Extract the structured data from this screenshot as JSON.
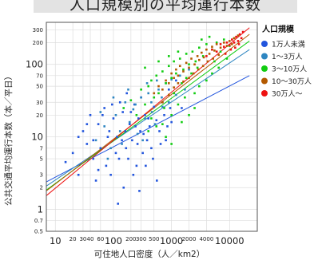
{
  "header": {
    "title": "人口規模別の平均運行本数"
  },
  "chart_data": {
    "type": "scatter",
    "title": "",
    "xlabel": "可住地人口密度（人／km2）",
    "ylabel": "公共交通平均運行本数（本／平日）",
    "x_scale": "log",
    "y_scale": "log",
    "xlim": [
      7,
      30000
    ],
    "ylim": [
      0.5,
      380
    ],
    "x_ticks": [
      {
        "v": 10,
        "label": "10",
        "size": "big"
      },
      {
        "v": 20,
        "label": "20",
        "size": "small"
      },
      {
        "v": 30,
        "label": "30",
        "size": "small"
      },
      {
        "v": 40,
        "label": "40",
        "size": "small"
      },
      {
        "v": 60,
        "label": "60",
        "size": "small"
      },
      {
        "v": 100,
        "label": "100",
        "size": "big"
      },
      {
        "v": 200,
        "label": "200",
        "size": "small"
      },
      {
        "v": 300,
        "label": "300",
        "size": "small"
      },
      {
        "v": 500,
        "label": "500",
        "size": "small"
      },
      {
        "v": 1000,
        "label": "1000",
        "size": "big"
      },
      {
        "v": 2000,
        "label": "2000",
        "size": "small"
      },
      {
        "v": 4000,
        "label": "4000",
        "size": "small"
      },
      {
        "v": 10000,
        "label": "10000",
        "size": "big"
      }
    ],
    "y_ticks": [
      {
        "v": 0.5,
        "label": "0.5",
        "size": "small"
      },
      {
        "v": 0.7,
        "label": "0.7",
        "size": "small"
      },
      {
        "v": 1,
        "label": "1",
        "size": "big"
      },
      {
        "v": 2,
        "label": "2",
        "size": "small"
      },
      {
        "v": 3,
        "label": "3",
        "size": "small"
      },
      {
        "v": 5,
        "label": "5",
        "size": "small"
      },
      {
        "v": 7,
        "label": "7",
        "size": "small"
      },
      {
        "v": 10,
        "label": "10",
        "size": "big"
      },
      {
        "v": 20,
        "label": "20",
        "size": "small"
      },
      {
        "v": 30,
        "label": "30",
        "size": "small"
      },
      {
        "v": 50,
        "label": "50",
        "size": "small"
      },
      {
        "v": 70,
        "label": "70",
        "size": "small"
      },
      {
        "v": 100,
        "label": "100",
        "size": "big"
      },
      {
        "v": 200,
        "label": "200",
        "size": "small"
      },
      {
        "v": 300,
        "label": "300",
        "size": "small"
      }
    ],
    "grid": true,
    "legend": {
      "title": "人口規模",
      "placement": "top-right"
    },
    "series": [
      {
        "name": "1万人未満",
        "color": "#2255dd",
        "points": [
          [
            15,
            4.5
          ],
          [
            20,
            6
          ],
          [
            25,
            3
          ],
          [
            30,
            12
          ],
          [
            35,
            8
          ],
          [
            40,
            20
          ],
          [
            45,
            5
          ],
          [
            50,
            2.5
          ],
          [
            55,
            15
          ],
          [
            60,
            7
          ],
          [
            70,
            25
          ],
          [
            75,
            4
          ],
          [
            80,
            10
          ],
          [
            90,
            3
          ],
          [
            100,
            18
          ],
          [
            110,
            6
          ],
          [
            120,
            1.2
          ],
          [
            130,
            30
          ],
          [
            140,
            9
          ],
          [
            150,
            2
          ],
          [
            160,
            12
          ],
          [
            170,
            40
          ],
          [
            180,
            5
          ],
          [
            200,
            22
          ],
          [
            220,
            3
          ],
          [
            240,
            14
          ],
          [
            260,
            8
          ],
          [
            280,
            1.8
          ],
          [
            300,
            35
          ],
          [
            330,
            11
          ],
          [
            360,
            4
          ],
          [
            400,
            18
          ],
          [
            450,
            7
          ],
          [
            500,
            26
          ],
          [
            560,
            2.5
          ],
          [
            620,
            12
          ],
          [
            700,
            30
          ],
          [
            800,
            9
          ],
          [
            900,
            45
          ],
          [
            1000,
            16
          ],
          [
            1200,
            60
          ],
          [
            1500,
            25
          ],
          [
            25,
            10
          ],
          [
            35,
            15
          ],
          [
            45,
            9
          ],
          [
            55,
            3.5
          ],
          [
            65,
            20
          ],
          [
            85,
            12
          ],
          [
            95,
            28
          ],
          [
            115,
            10
          ],
          [
            125,
            5
          ],
          [
            145,
            22
          ],
          [
            165,
            7
          ],
          [
            190,
            15
          ],
          [
            210,
            9
          ],
          [
            230,
            28
          ],
          [
            250,
            4
          ],
          [
            270,
            18
          ],
          [
            290,
            12
          ],
          [
            320,
            6
          ],
          [
            350,
            20
          ],
          [
            380,
            9
          ],
          [
            420,
            14
          ],
          [
            480,
            5
          ],
          [
            550,
            17
          ],
          [
            650,
            8
          ],
          [
            750,
            20
          ],
          [
            850,
            14
          ],
          [
            950,
            25
          ]
        ]
      },
      {
        "name": "1〜3万人",
        "color": "#2e86c1",
        "points": [
          [
            50,
            9
          ],
          [
            70,
            14
          ],
          [
            90,
            7
          ],
          [
            110,
            20
          ],
          [
            130,
            12
          ],
          [
            160,
            30
          ],
          [
            190,
            16
          ],
          [
            220,
            24
          ],
          [
            260,
            11
          ],
          [
            300,
            35
          ],
          [
            350,
            18
          ],
          [
            400,
            40
          ],
          [
            460,
            22
          ],
          [
            520,
            15
          ],
          [
            600,
            45
          ],
          [
            700,
            26
          ],
          [
            800,
            55
          ],
          [
            900,
            30
          ],
          [
            1000,
            62
          ],
          [
            1200,
            38
          ],
          [
            1400,
            70
          ],
          [
            1700,
            45
          ],
          [
            2000,
            85
          ],
          [
            60,
            22
          ],
          [
            80,
            5
          ],
          [
            100,
            35
          ],
          [
            140,
            8
          ],
          [
            180,
            45
          ],
          [
            240,
            28
          ],
          [
            320,
            9
          ],
          [
            380,
            55
          ],
          [
            450,
            30
          ],
          [
            560,
            60
          ],
          [
            680,
            35
          ]
        ]
      },
      {
        "name": "3〜10万人",
        "color": "#11cc11",
        "points": [
          [
            150,
            25
          ],
          [
            200,
            32
          ],
          [
            250,
            20
          ],
          [
            300,
            45
          ],
          [
            350,
            28
          ],
          [
            400,
            50
          ],
          [
            450,
            60
          ],
          [
            500,
            35
          ],
          [
            550,
            70
          ],
          [
            600,
            40
          ],
          [
            700,
            80
          ],
          [
            800,
            55
          ],
          [
            900,
            95
          ],
          [
            1000,
            65
          ],
          [
            1100,
            110
          ],
          [
            1200,
            75
          ],
          [
            1400,
            120
          ],
          [
            1600,
            85
          ],
          [
            1800,
            140
          ],
          [
            2000,
            100
          ],
          [
            2300,
            150
          ],
          [
            2600,
            110
          ],
          [
            3000,
            170
          ],
          [
            3500,
            130
          ],
          [
            4000,
            190
          ],
          [
            5000,
            160
          ],
          [
            6000,
            200
          ],
          [
            7000,
            150
          ],
          [
            8000,
            220
          ],
          [
            10000,
            180
          ],
          [
            350,
            90
          ],
          [
            450,
            18
          ],
          [
            600,
            110
          ],
          [
            750,
            25
          ],
          [
            900,
            130
          ],
          [
            1100,
            40
          ],
          [
            1300,
            150
          ],
          [
            1500,
            55
          ],
          [
            1800,
            65
          ],
          [
            2200,
            75
          ],
          [
            2800,
            90
          ],
          [
            3300,
            220
          ],
          [
            4500,
            240
          ],
          [
            5500,
            110
          ],
          [
            700,
            15
          ],
          [
            1000,
            20
          ],
          [
            1300,
            28
          ],
          [
            1700,
            35
          ],
          [
            2500,
            40
          ],
          [
            3000,
            50
          ],
          [
            400,
            12
          ],
          [
            550,
            14
          ],
          [
            800,
            10
          ],
          [
            1000,
            8
          ],
          [
            1500,
            16
          ],
          [
            2000,
            20
          ],
          [
            2500,
            25
          ],
          [
            12000,
            230
          ],
          [
            9000,
            120
          ],
          [
            6500,
            90
          ],
          [
            5000,
            75
          ],
          [
            4000,
            60
          ]
        ]
      },
      {
        "name": "10〜30万人",
        "color": "#b35900",
        "points": [
          [
            500,
            40
          ],
          [
            600,
            50
          ],
          [
            700,
            45
          ],
          [
            800,
            60
          ],
          [
            900,
            55
          ],
          [
            1000,
            75
          ],
          [
            1100,
            65
          ],
          [
            1200,
            85
          ],
          [
            1300,
            70
          ],
          [
            1400,
            95
          ],
          [
            1600,
            80
          ],
          [
            1800,
            105
          ],
          [
            2000,
            90
          ],
          [
            2200,
            120
          ],
          [
            2500,
            100
          ],
          [
            2800,
            130
          ],
          [
            3000,
            115
          ],
          [
            3300,
            145
          ],
          [
            3600,
            125
          ],
          [
            4000,
            160
          ],
          [
            4500,
            140
          ],
          [
            5000,
            175
          ],
          [
            5500,
            155
          ],
          [
            6000,
            190
          ],
          [
            7000,
            170
          ],
          [
            8000,
            200
          ],
          [
            9000,
            180
          ],
          [
            10000,
            210
          ],
          [
            11000,
            190
          ],
          [
            12000,
            230
          ],
          [
            14000,
            250
          ],
          [
            700,
            30
          ],
          [
            900,
            38
          ],
          [
            1100,
            48
          ],
          [
            1300,
            55
          ],
          [
            1600,
            58
          ],
          [
            2000,
            65
          ],
          [
            2400,
            75
          ],
          [
            2900,
            85
          ],
          [
            3500,
            95
          ],
          [
            4200,
            110
          ],
          [
            5200,
            120
          ],
          [
            6500,
            135
          ]
        ]
      },
      {
        "name": "30万人〜",
        "color": "#ee1111",
        "points": [
          [
            4000,
            130
          ],
          [
            5000,
            160
          ],
          [
            6000,
            150
          ],
          [
            7000,
            190
          ],
          [
            8000,
            175
          ],
          [
            9000,
            200
          ],
          [
            10000,
            185
          ],
          [
            11000,
            220
          ],
          [
            12000,
            200
          ],
          [
            13000,
            240
          ],
          [
            14000,
            210
          ],
          [
            15000,
            260
          ],
          [
            16000,
            230
          ],
          [
            17000,
            280
          ],
          [
            8500,
            140
          ],
          [
            10500,
            160
          ],
          [
            12500,
            170
          ],
          [
            14500,
            190
          ]
        ]
      }
    ],
    "fit_lines": [
      {
        "series": "1万人未満",
        "color": "#2255dd",
        "from": [
          7,
          2.4
        ],
        "to": [
          22000,
          70
        ]
      },
      {
        "series": "1〜3万人",
        "color": "#2e86c1",
        "from": [
          7,
          2.1
        ],
        "to": [
          22000,
          160
        ]
      },
      {
        "series": "3〜10万人",
        "color": "#11cc11",
        "from": [
          7,
          1.85
        ],
        "to": [
          22000,
          210
        ]
      },
      {
        "series": "10〜30万人",
        "color": "#b35900",
        "from": [
          7,
          1.8
        ],
        "to": [
          22000,
          260
        ]
      },
      {
        "series": "30万人〜",
        "color": "#ee1111",
        "from": [
          7,
          1.55
        ],
        "to": [
          22000,
          320
        ]
      }
    ]
  }
}
